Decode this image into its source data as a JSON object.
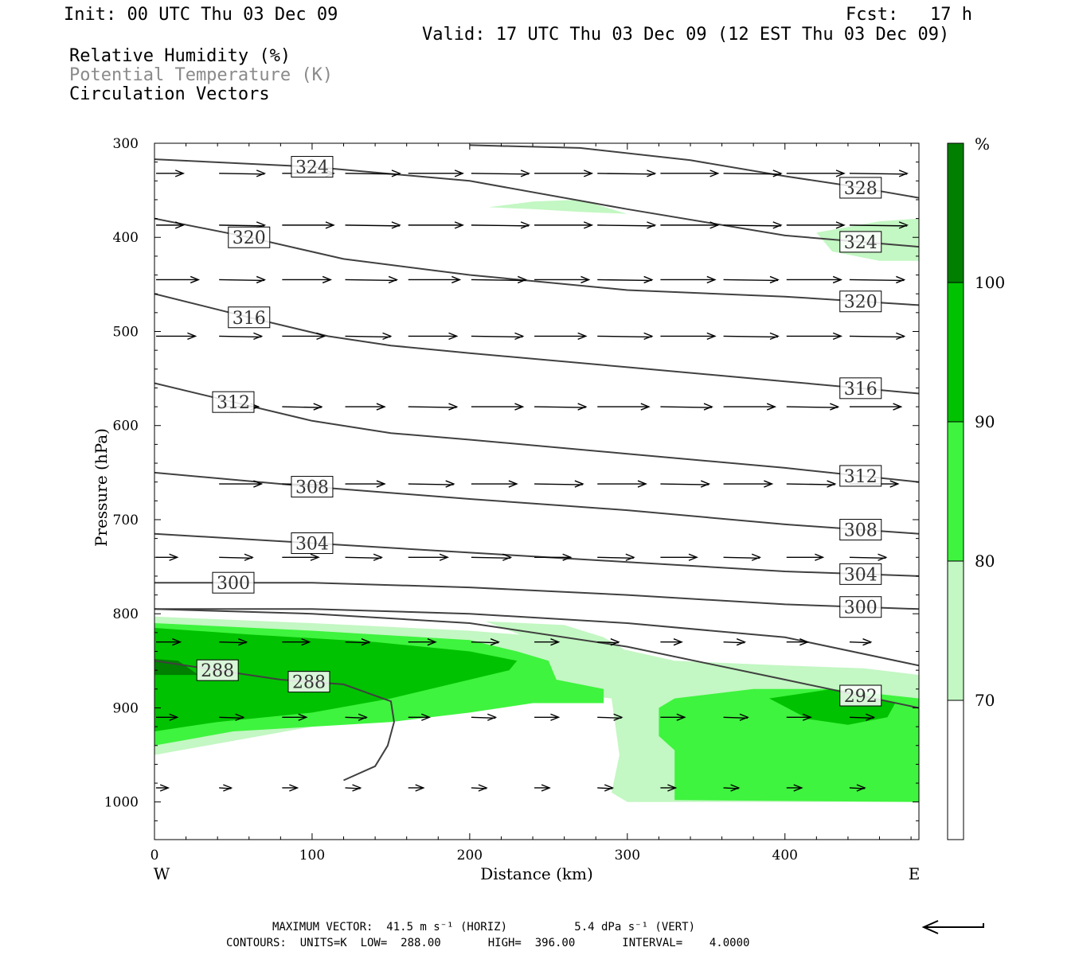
{
  "header": {
    "init": "Init: 00 UTC Thu 03 Dec 09",
    "fcst": "Fcst:   17 h",
    "valid": "Valid: 17 UTC Thu 03 Dec 09 (12 EST Thu 03 Dec 09)",
    "titles": [
      "Relative Humidity (%)",
      "Potential Temperature (K)",
      "Circulation Vectors"
    ]
  },
  "colors": {
    "rh_70": "#c3f7c3",
    "rh_80": "#3ef43e",
    "rh_90": "#00c200",
    "rh_100": "#007f00",
    "theta_line": "#404040",
    "arrow": "#000000"
  },
  "chart_data": {
    "type": "cross-section",
    "xlabel": "Distance (km)",
    "ylabel": "Pressure (hPa)",
    "xlim": [
      0,
      485
    ],
    "ylim": [
      1040,
      300
    ],
    "x_ticks": [
      0,
      100,
      200,
      300,
      400
    ],
    "y_ticks": [
      300,
      400,
      500,
      600,
      700,
      800,
      900,
      1000
    ],
    "x_end_labels": {
      "left": "W",
      "right": "E"
    },
    "legend": {
      "unit": "%",
      "levels": [
        "70",
        "80",
        "90",
        "100"
      ]
    },
    "rh_regions": [
      {
        "level": 70,
        "points": [
          [
            0,
            803
          ],
          [
            100,
            810
          ],
          [
            200,
            818
          ],
          [
            260,
            826
          ],
          [
            290,
            835
          ],
          [
            330,
            850
          ],
          [
            400,
            855
          ],
          [
            450,
            858
          ],
          [
            485,
            865
          ],
          [
            485,
            1000
          ],
          [
            300,
            1000
          ],
          [
            290,
            990
          ],
          [
            295,
            950
          ],
          [
            290,
            890
          ],
          [
            240,
            880
          ],
          [
            200,
            900
          ],
          [
            100,
            920
          ],
          [
            0,
            950
          ]
        ]
      },
      {
        "level": 70,
        "points": [
          [
            210,
            808
          ],
          [
            260,
            812
          ],
          [
            285,
            825
          ],
          [
            300,
            840
          ],
          [
            305,
            870
          ],
          [
            330,
            880
          ],
          [
            330,
            940
          ],
          [
            320,
            970
          ],
          [
            320,
            990
          ],
          [
            300,
            995
          ],
          [
            296,
            960
          ],
          [
            295,
            900
          ],
          [
            290,
            860
          ]
        ]
      },
      {
        "level": 70,
        "points": [
          [
            212,
            368
          ],
          [
            240,
            362
          ],
          [
            270,
            360
          ],
          [
            300,
            375
          ],
          [
            270,
            373
          ],
          [
            240,
            370
          ]
        ]
      },
      {
        "level": 70,
        "points": [
          [
            420,
            395
          ],
          [
            460,
            383
          ],
          [
            485,
            380
          ],
          [
            485,
            425
          ],
          [
            460,
            425
          ],
          [
            430,
            415
          ]
        ]
      },
      {
        "level": 80,
        "points": [
          [
            0,
            810
          ],
          [
            100,
            818
          ],
          [
            200,
            828
          ],
          [
            230,
            840
          ],
          [
            250,
            850
          ],
          [
            255,
            870
          ],
          [
            285,
            880
          ],
          [
            285,
            895
          ],
          [
            240,
            895
          ],
          [
            200,
            905
          ],
          [
            150,
            915
          ],
          [
            100,
            920
          ],
          [
            50,
            925
          ],
          [
            0,
            940
          ]
        ]
      },
      {
        "level": 80,
        "points": [
          [
            320,
            900
          ],
          [
            330,
            890
          ],
          [
            380,
            880
          ],
          [
            430,
            880
          ],
          [
            485,
            890
          ],
          [
            485,
            1000
          ],
          [
            330,
            998
          ],
          [
            330,
            945
          ],
          [
            320,
            930
          ]
        ]
      },
      {
        "level": 90,
        "points": [
          [
            0,
            815
          ],
          [
            60,
            822
          ],
          [
            140,
            830
          ],
          [
            200,
            840
          ],
          [
            230,
            850
          ],
          [
            225,
            860
          ],
          [
            200,
            870
          ],
          [
            150,
            890
          ],
          [
            100,
            905
          ],
          [
            40,
            915
          ],
          [
            0,
            925
          ]
        ]
      },
      {
        "level": 90,
        "points": [
          [
            390,
            890
          ],
          [
            430,
            880
          ],
          [
            470,
            895
          ],
          [
            465,
            910
          ],
          [
            440,
            918
          ],
          [
            415,
            912
          ]
        ]
      },
      {
        "level": 100,
        "points": [
          [
            0,
            848
          ],
          [
            15,
            850
          ],
          [
            28,
            865
          ],
          [
            0,
            865
          ]
        ]
      }
    ],
    "theta_contours": [
      {
        "value": 288,
        "label": "288",
        "points": [
          [
            0,
            850
          ],
          [
            40,
            860
          ],
          [
            80,
            870
          ],
          [
            120,
            875
          ],
          [
            150,
            893
          ],
          [
            152,
            915
          ],
          [
            148,
            940
          ],
          [
            140,
            962
          ],
          [
            120,
            977
          ]
        ]
      },
      {
        "value": 292,
        "label": "292",
        "points": [
          [
            0,
            795
          ],
          [
            100,
            800
          ],
          [
            200,
            810
          ],
          [
            300,
            835
          ],
          [
            400,
            870
          ],
          [
            485,
            900
          ]
        ]
      },
      {
        "value": 296,
        "label": "",
        "points": [
          [
            0,
            795
          ],
          [
            100,
            795
          ],
          [
            200,
            800
          ],
          [
            300,
            810
          ],
          [
            400,
            825
          ],
          [
            485,
            855
          ]
        ]
      },
      {
        "value": 300,
        "label": "300",
        "points": [
          [
            0,
            767
          ],
          [
            50,
            767
          ],
          [
            100,
            767
          ],
          [
            200,
            772
          ],
          [
            300,
            780
          ],
          [
            400,
            790
          ],
          [
            485,
            795
          ]
        ]
      },
      {
        "value": 304,
        "label": "304",
        "points": [
          [
            0,
            715
          ],
          [
            100,
            725
          ],
          [
            200,
            735
          ],
          [
            300,
            745
          ],
          [
            400,
            755
          ],
          [
            485,
            760
          ]
        ]
      },
      {
        "value": 308,
        "label": "308",
        "points": [
          [
            0,
            650
          ],
          [
            100,
            665
          ],
          [
            200,
            678
          ],
          [
            300,
            690
          ],
          [
            400,
            705
          ],
          [
            485,
            715
          ]
        ]
      },
      {
        "value": 312,
        "label": "312",
        "points": [
          [
            0,
            555
          ],
          [
            50,
            575
          ],
          [
            100,
            595
          ],
          [
            150,
            608
          ],
          [
            200,
            615
          ],
          [
            300,
            630
          ],
          [
            400,
            645
          ],
          [
            485,
            660
          ]
        ]
      },
      {
        "value": 316,
        "label": "316",
        "points": [
          [
            0,
            460
          ],
          [
            60,
            485
          ],
          [
            110,
            505
          ],
          [
            150,
            515
          ],
          [
            200,
            523
          ],
          [
            300,
            538
          ],
          [
            400,
            553
          ],
          [
            485,
            566
          ]
        ]
      },
      {
        "value": 320,
        "label": "320",
        "points": [
          [
            0,
            380
          ],
          [
            60,
            400
          ],
          [
            120,
            423
          ],
          [
            200,
            440
          ],
          [
            300,
            456
          ],
          [
            400,
            463
          ],
          [
            485,
            472
          ]
        ]
      },
      {
        "value": 324,
        "label": "324",
        "points": [
          [
            0,
            317
          ],
          [
            100,
            325
          ],
          [
            200,
            340
          ],
          [
            300,
            370
          ],
          [
            400,
            398
          ],
          [
            485,
            410
          ]
        ]
      },
      {
        "value": 328,
        "label": "328",
        "points": [
          [
            200,
            302
          ],
          [
            270,
            305
          ],
          [
            340,
            318
          ],
          [
            400,
            335
          ],
          [
            440,
            345
          ],
          [
            485,
            358
          ]
        ]
      }
    ],
    "vector_rows": [
      {
        "p": 332,
        "x": [
          0,
          40,
          80,
          120,
          160,
          200,
          240,
          280,
          320,
          360,
          400,
          440
        ],
        "u": [
          18,
          30,
          34,
          36,
          36,
          38,
          38,
          38,
          38,
          38,
          38,
          38
        ],
        "w": [
          0,
          0,
          0,
          0,
          0,
          0,
          0,
          0,
          0,
          0,
          0,
          0
        ]
      },
      {
        "p": 387,
        "x": [
          0,
          40,
          80,
          120,
          160,
          200,
          240,
          280,
          320,
          360,
          400,
          440
        ],
        "u": [
          18,
          30,
          34,
          36,
          36,
          38,
          38,
          38,
          38,
          38,
          38,
          38
        ],
        "w": [
          0,
          0,
          0,
          0,
          0,
          0,
          0,
          0,
          0,
          0,
          0,
          0
        ]
      },
      {
        "p": 445,
        "x": [
          0,
          40,
          80,
          120,
          160,
          200,
          240,
          280,
          320,
          360,
          400,
          440
        ],
        "u": [
          28,
          30,
          32,
          34,
          34,
          36,
          36,
          36,
          36,
          36,
          36,
          36
        ],
        "w": [
          0,
          0,
          0,
          0,
          0,
          0,
          0,
          0,
          0,
          0,
          0,
          0
        ]
      },
      {
        "p": 505,
        "x": [
          0,
          40,
          80,
          120,
          160,
          200,
          240,
          280,
          320,
          360,
          400,
          440
        ],
        "u": [
          26,
          28,
          28,
          30,
          32,
          34,
          34,
          36,
          36,
          36,
          36,
          36
        ],
        "w": [
          0,
          0,
          0,
          0,
          0,
          0,
          0,
          0,
          0,
          0,
          0,
          0
        ]
      },
      {
        "p": 580,
        "x": [
          40,
          80,
          120,
          160,
          200,
          240,
          280,
          320,
          360,
          400,
          440
        ],
        "u": [
          26,
          26,
          26,
          32,
          34,
          34,
          34,
          34,
          34,
          34,
          34
        ],
        "w": [
          0,
          0,
          0,
          0,
          0,
          0,
          0,
          0,
          0,
          0,
          0
        ]
      },
      {
        "p": 662,
        "x": [
          40,
          80,
          120,
          160,
          200,
          240,
          280,
          320,
          360,
          400,
          440
        ],
        "u": [
          28,
          26,
          26,
          30,
          30,
          32,
          32,
          32,
          32,
          32,
          32
        ],
        "w": [
          0,
          0,
          0,
          0,
          0,
          0,
          0,
          0,
          0,
          0,
          0
        ]
      },
      {
        "p": 740,
        "x": [
          0,
          40,
          80,
          120,
          160,
          200,
          240,
          280,
          320,
          360,
          400,
          440
        ],
        "u": [
          14,
          22,
          24,
          24,
          26,
          26,
          24,
          24,
          24,
          24,
          24,
          24
        ],
        "w": [
          0,
          0,
          0,
          0,
          0,
          0,
          0,
          0,
          0,
          0,
          0,
          0
        ]
      },
      {
        "p": 830,
        "x": [
          0,
          40,
          80,
          120,
          160,
          200,
          240,
          280,
          320,
          360,
          400,
          440
        ],
        "u": [
          16,
          18,
          18,
          16,
          18,
          18,
          16,
          14,
          14,
          14,
          14,
          14
        ],
        "w": [
          0,
          0,
          0,
          0,
          0,
          0,
          0,
          0,
          0,
          0,
          0,
          0
        ]
      },
      {
        "p": 910,
        "x": [
          0,
          40,
          80,
          120,
          160,
          200,
          240,
          280,
          320,
          360,
          400,
          440
        ],
        "u": [
          14,
          16,
          16,
          14,
          14,
          16,
          16,
          16,
          16,
          16,
          16,
          16
        ],
        "w": [
          0,
          0,
          0,
          0,
          0,
          0,
          0,
          0,
          0,
          0,
          0,
          0
        ]
      },
      {
        "p": 985,
        "x": [
          0,
          40,
          80,
          120,
          160,
          200,
          240,
          280,
          320,
          360,
          400,
          440
        ],
        "u": [
          8,
          8,
          10,
          10,
          10,
          10,
          10,
          10,
          10,
          10,
          10,
          10
        ],
        "w": [
          0,
          0,
          0,
          0,
          0,
          0,
          0,
          0,
          0,
          0,
          0,
          0
        ]
      }
    ]
  },
  "footer": {
    "max_vector": "MAXIMUM VECTOR:  41.5 m s⁻¹ (HORIZ)          5.4 dPa s⁻¹ (VERT)",
    "contours": "CONTOURS:  UNITS=K  LOW=  288.00       HIGH=  396.00       INTERVAL=    4.0000"
  }
}
